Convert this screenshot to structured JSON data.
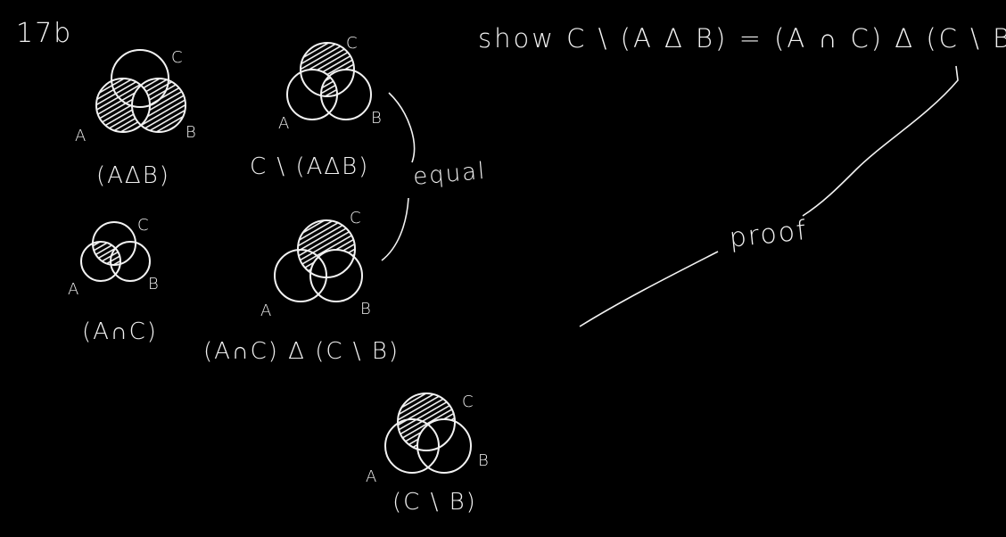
{
  "problem_number": "17b",
  "statement": "show  C \\ (A Δ B) = (A ∩ C) Δ (C \\ B)",
  "annotations": {
    "equal": "equal",
    "proof": "proof"
  },
  "diagrams": [
    {
      "id": "a-sym-b",
      "caption": "(AΔB)",
      "labels": {
        "a": "A",
        "b": "B",
        "c": "C"
      },
      "shaded": "A Δ B"
    },
    {
      "id": "c-minus-a-sym-b",
      "caption": "C \\ (AΔB)",
      "labels": {
        "a": "A",
        "b": "B",
        "c": "C"
      },
      "shaded": "C \\ (A Δ B)"
    },
    {
      "id": "a-and-c",
      "caption": "(A∩C)",
      "labels": {
        "a": "A",
        "b": "B",
        "c": "C"
      },
      "shaded": "A ∩ C"
    },
    {
      "id": "a-and-c-sym-c-minus-b",
      "caption": "(A∩C) Δ (C \\ B)",
      "labels": {
        "a": "A",
        "b": "B",
        "c": "C"
      },
      "shaded": "(A ∩ C) Δ (C \\ B)"
    },
    {
      "id": "c-minus-b",
      "caption": "(C \\ B)",
      "labels": {
        "a": "A",
        "b": "B",
        "c": "C"
      },
      "shaded": "C \\ B"
    }
  ],
  "colors": {
    "background": "#000000",
    "ink": "#f2f2f2"
  }
}
